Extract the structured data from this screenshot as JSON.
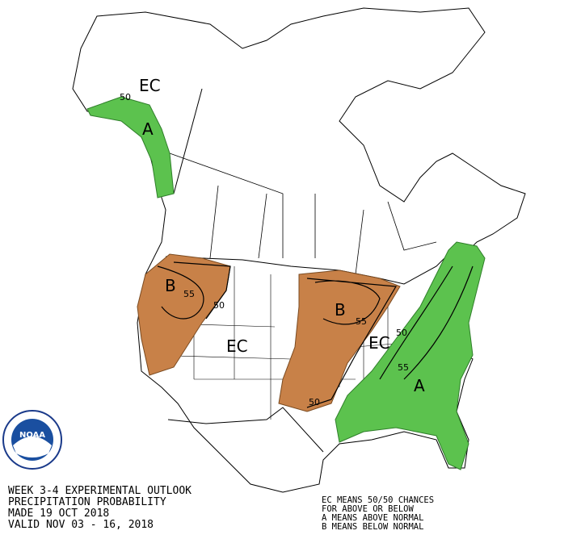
{
  "title_block": {
    "lines": [
      "WEEK 3-4 EXPERIMENTAL OUTLOOK",
      "PRECIPITATION PROBABILITY",
      "MADE  19 OCT 2018",
      "VALID  NOV 03 - 16, 2018"
    ]
  },
  "legend": {
    "lines": [
      "EC MEANS 50/50 CHANCES",
      "FOR ABOVE OR BELOW",
      "A MEANS ABOVE NORMAL",
      "B MEANS BELOW NORMAL"
    ]
  },
  "map_labels": {
    "ec": [
      "EC",
      "EC",
      "EC"
    ],
    "above": [
      "A",
      "A"
    ],
    "below": [
      "B",
      "B"
    ],
    "contours": [
      50,
      55,
      50,
      55,
      50,
      50,
      55
    ]
  },
  "logo": "NOAA"
}
